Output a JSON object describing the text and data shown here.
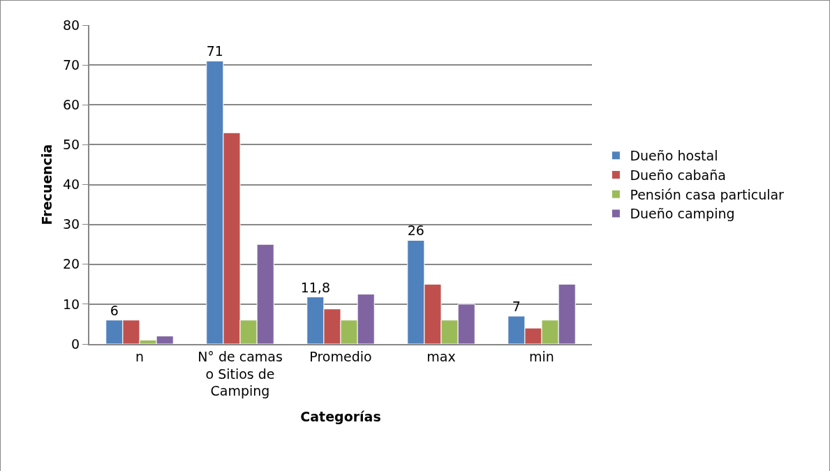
{
  "chart_data": {
    "type": "bar",
    "xlabel": "Categorías",
    "ylabel": "Frecuencia",
    "categories": [
      "n",
      "N° de camas o Sitios de Camping",
      "Promedio",
      "max",
      "min"
    ],
    "series": [
      {
        "name": "Dueño hostal",
        "color": "#4f81bd",
        "values": [
          6,
          71,
          11.8,
          26,
          7
        ],
        "value_labels": [
          "6",
          "71",
          "11,8",
          "26",
          "7"
        ]
      },
      {
        "name": "Dueño cabaña",
        "color": "#c0504d",
        "values": [
          6,
          53,
          8.8,
          15,
          4
        ]
      },
      {
        "name": "Pensión casa particular",
        "color": "#9bbb59",
        "values": [
          1,
          6,
          6,
          6,
          6
        ]
      },
      {
        "name": "Dueño camping",
        "color": "#8064a2",
        "values": [
          2,
          25,
          12.5,
          10,
          15
        ]
      }
    ],
    "ylim": [
      0,
      80
    ],
    "yticks": [
      0,
      10,
      20,
      30,
      40,
      50,
      60,
      70,
      80
    ],
    "grid": "y",
    "legend": "right"
  }
}
